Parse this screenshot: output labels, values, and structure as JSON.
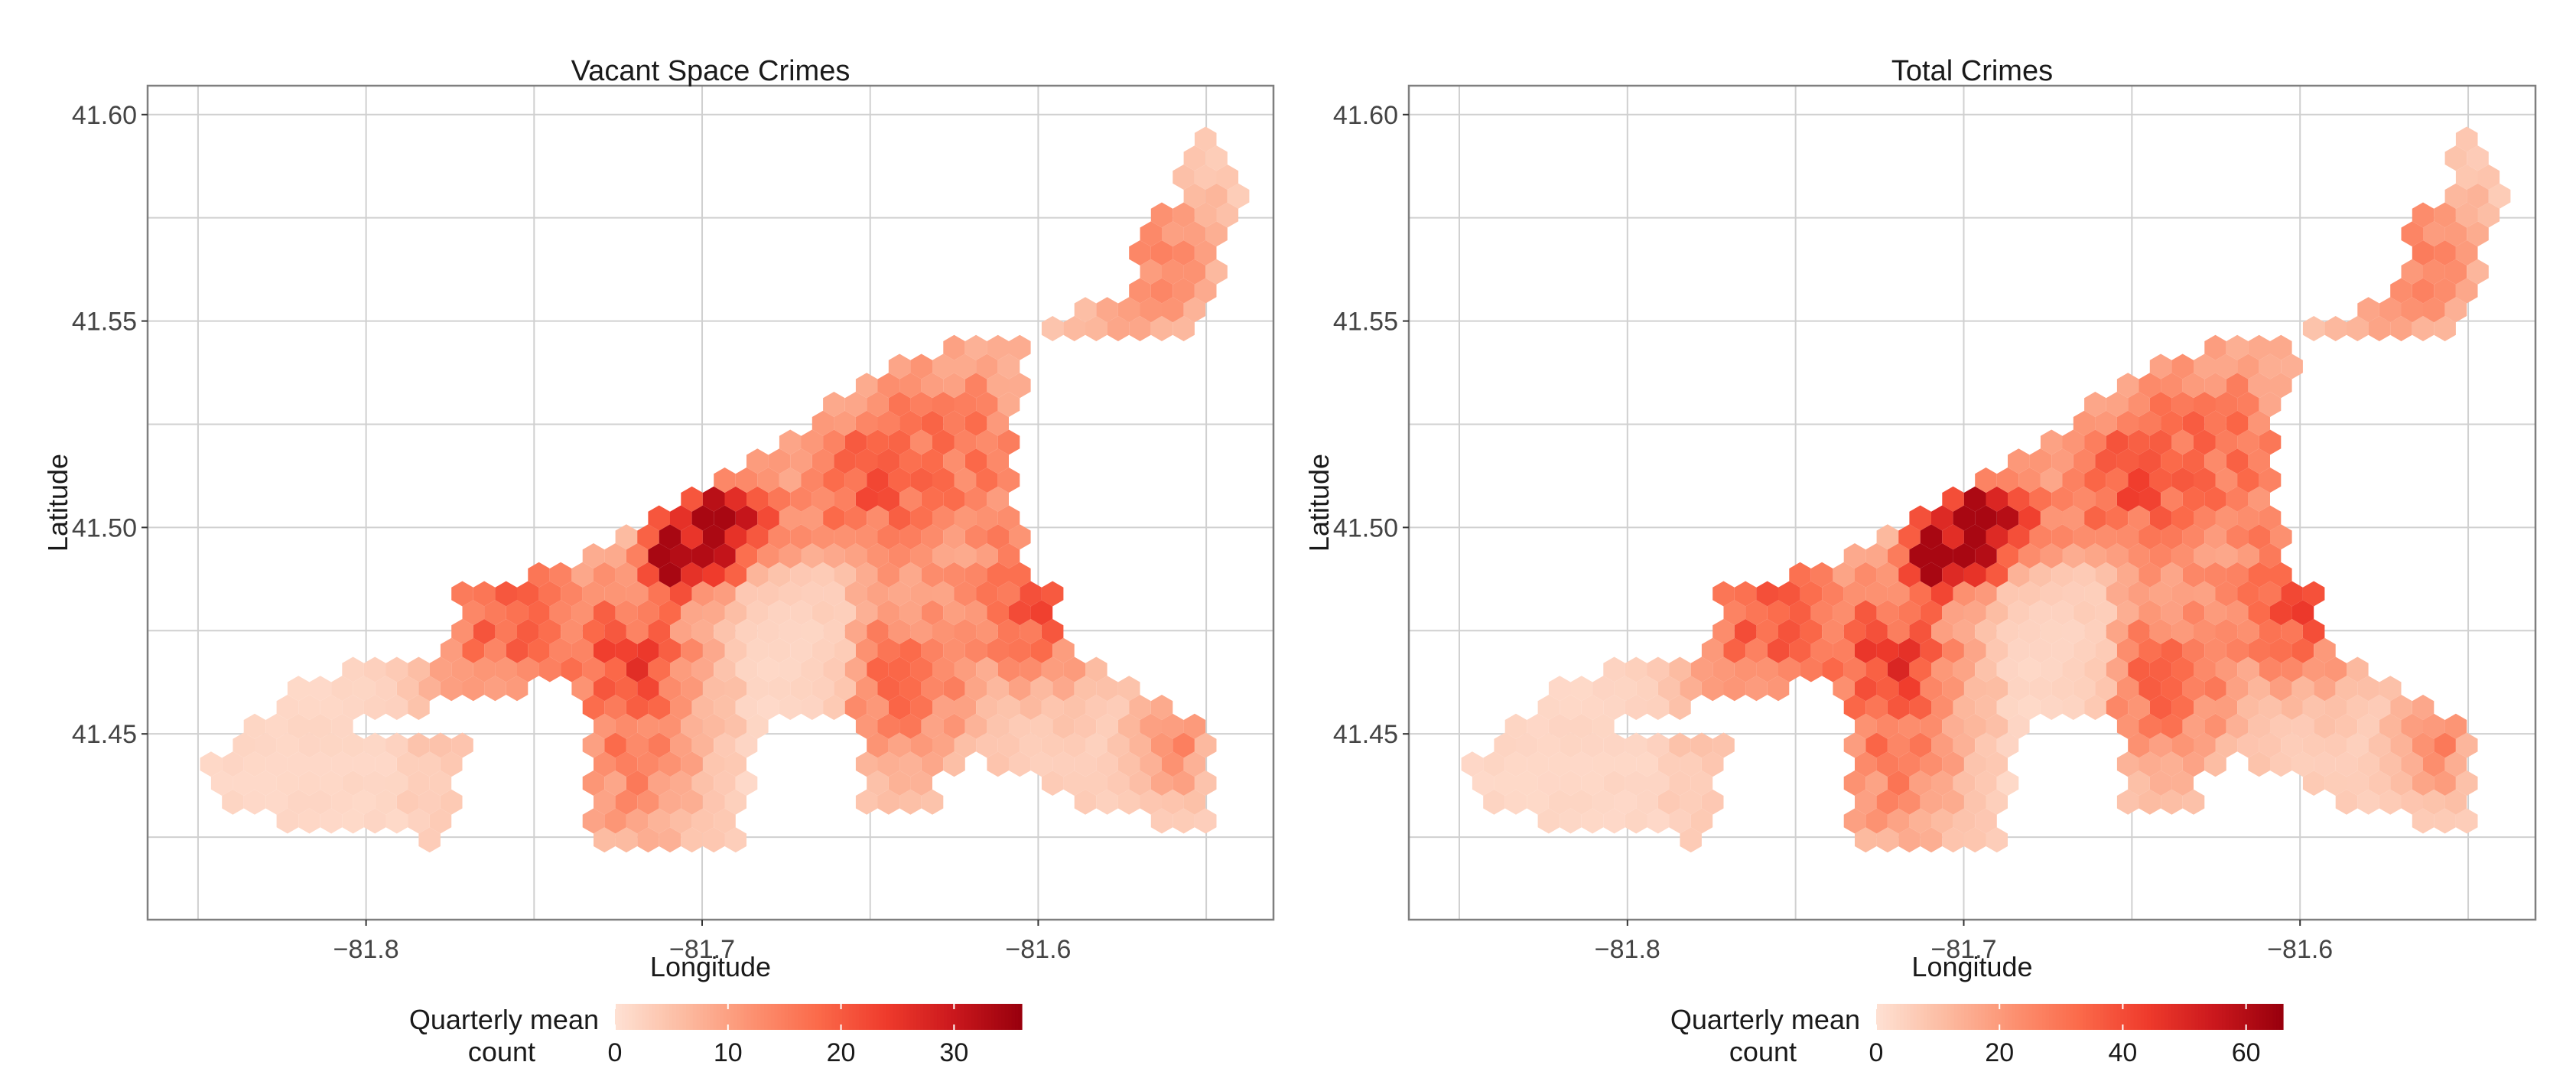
{
  "chart_data": [
    {
      "type": "heatmap",
      "subtype": "hexbin-map",
      "title": "Vacant Space Crimes",
      "xlabel": "Longitude",
      "ylabel": "Latitude",
      "xlim": [
        -81.865,
        -81.53
      ],
      "ylim": [
        41.405,
        41.607
      ],
      "x_ticks": [
        -81.8,
        -81.7,
        -81.6
      ],
      "x_tick_labels": [
        "−81.8",
        "−81.7",
        "−81.6"
      ],
      "y_ticks": [
        41.45,
        41.5,
        41.55,
        41.6
      ],
      "y_tick_labels": [
        "41.45",
        "41.50",
        "41.55",
        "41.60"
      ],
      "grid": true,
      "legend": {
        "title_line1": "Quarterly mean",
        "title_line2": "count",
        "min": 0,
        "max": 36,
        "ticks": [
          0,
          10,
          20,
          30
        ],
        "tick_labels": [
          "0",
          "10",
          "20",
          "30"
        ],
        "placement": "bottom"
      },
      "value_range": [
        0,
        36
      ],
      "peak_value": 36
    },
    {
      "type": "heatmap",
      "subtype": "hexbin-map",
      "title": "Total Crimes",
      "xlabel": "Longitude",
      "ylabel": "Latitude",
      "xlim": [
        -81.865,
        -81.53
      ],
      "ylim": [
        41.405,
        41.607
      ],
      "x_ticks": [
        -81.8,
        -81.7,
        -81.6
      ],
      "x_tick_labels": [
        "−81.8",
        "−81.7",
        "−81.6"
      ],
      "y_ticks": [
        41.45,
        41.5,
        41.55,
        41.6
      ],
      "y_tick_labels": [
        "41.45",
        "41.50",
        "41.55",
        "41.60"
      ],
      "grid": true,
      "legend": {
        "title_line1": "Quarterly mean",
        "title_line2": "count",
        "min": 0,
        "max": 66,
        "ticks": [
          0,
          20,
          40,
          60
        ],
        "tick_labels": [
          "0",
          "20",
          "40",
          "60"
        ],
        "placement": "bottom"
      },
      "value_range": [
        0,
        66
      ],
      "peak_value": 66
    }
  ],
  "colors": {
    "scale": [
      "#fee0d2",
      "#fcbba1",
      "#fc9272",
      "#fb6a4a",
      "#ef3b2c",
      "#cb181d",
      "#99000d"
    ],
    "grid": "#d0d0d0",
    "panel_border": "#7f7f7f",
    "text": "#1a1a1a"
  }
}
